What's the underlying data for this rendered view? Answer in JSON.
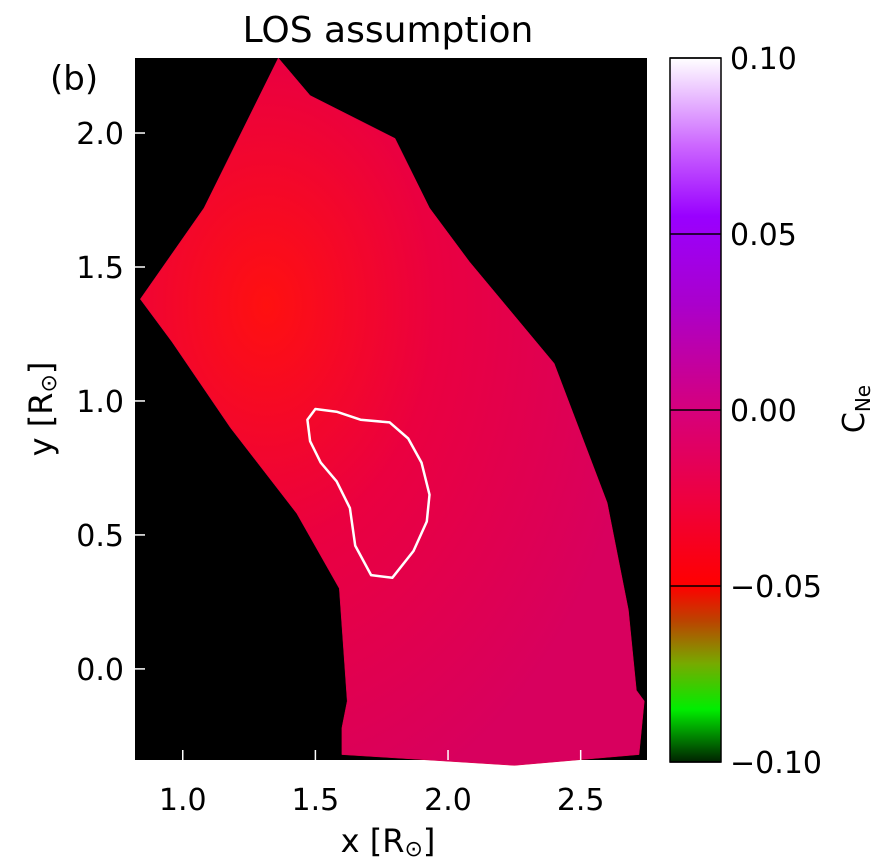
{
  "panel_label": "(b)",
  "chart_data": {
    "type": "heatmap",
    "title": "LOS assumption",
    "xlabel": "x [R",
    "ylabel": "y [R",
    "xlabel_suffix": "]",
    "ylabel_suffix": "]",
    "sun_symbol": "⊙",
    "xlim": [
      0.82,
      2.75
    ],
    "ylim": [
      -0.34,
      2.28
    ],
    "xticks": [
      {
        "value": 1.0,
        "label": "1.0"
      },
      {
        "value": 1.5,
        "label": "1.5"
      },
      {
        "value": 2.0,
        "label": "2.0"
      },
      {
        "value": 2.5,
        "label": "2.5"
      }
    ],
    "yticks": [
      {
        "value": 0.0,
        "label": "0.0"
      },
      {
        "value": 0.5,
        "label": "0.5"
      },
      {
        "value": 1.0,
        "label": "1.0"
      },
      {
        "value": 1.5,
        "label": "1.5"
      },
      {
        "value": 2.0,
        "label": "2.0"
      }
    ],
    "background_color": "#000000",
    "region_color": "#dc0048",
    "region_outline": [
      [
        0.84,
        1.38
      ],
      [
        1.08,
        1.72
      ],
      [
        1.36,
        2.28
      ],
      [
        1.48,
        2.14
      ],
      [
        1.8,
        1.98
      ],
      [
        1.93,
        1.72
      ],
      [
        2.08,
        1.52
      ],
      [
        2.4,
        1.14
      ],
      [
        2.6,
        0.62
      ],
      [
        2.68,
        0.22
      ],
      [
        2.71,
        -0.08
      ],
      [
        2.74,
        -0.12
      ],
      [
        2.72,
        -0.32
      ],
      [
        2.25,
        -0.36
      ],
      [
        1.6,
        -0.32
      ],
      [
        1.6,
        -0.22
      ],
      [
        1.62,
        -0.12
      ],
      [
        1.59,
        0.3
      ],
      [
        1.43,
        0.58
      ],
      [
        1.18,
        0.9
      ],
      [
        0.96,
        1.22
      ]
    ],
    "contour": {
      "color": "#ffffff",
      "points": [
        [
          1.5,
          0.97
        ],
        [
          1.58,
          0.96
        ],
        [
          1.67,
          0.93
        ],
        [
          1.78,
          0.92
        ],
        [
          1.85,
          0.86
        ],
        [
          1.9,
          0.77
        ],
        [
          1.93,
          0.65
        ],
        [
          1.92,
          0.55
        ],
        [
          1.87,
          0.44
        ],
        [
          1.79,
          0.34
        ],
        [
          1.71,
          0.35
        ],
        [
          1.65,
          0.46
        ],
        [
          1.63,
          0.6
        ],
        [
          1.58,
          0.7
        ],
        [
          1.52,
          0.77
        ],
        [
          1.48,
          0.85
        ],
        [
          1.47,
          0.93
        ]
      ]
    },
    "colorbar": {
      "label": "C",
      "label_sub": "Ne",
      "min": -0.1,
      "max": 0.1,
      "ticks": [
        {
          "value": 0.1,
          "label": "0.10"
        },
        {
          "value": 0.05,
          "label": "0.05"
        },
        {
          "value": 0.0,
          "label": "0.00"
        },
        {
          "value": -0.05,
          "label": "−0.05"
        },
        {
          "value": -0.1,
          "label": "−0.10"
        }
      ],
      "stops": [
        {
          "value": 0.1,
          "color": "#ffffff"
        },
        {
          "value": 0.075,
          "color": "#cc66ff"
        },
        {
          "value": 0.055,
          "color": "#9900ff"
        },
        {
          "value": 0.03,
          "color": "#aa00cc"
        },
        {
          "value": 0.0,
          "color": "#d6007c"
        },
        {
          "value": -0.025,
          "color": "#ee0040"
        },
        {
          "value": -0.05,
          "color": "#ff0000"
        },
        {
          "value": -0.06,
          "color": "#bb4400"
        },
        {
          "value": -0.072,
          "color": "#77aa00"
        },
        {
          "value": -0.085,
          "color": "#00ee00"
        },
        {
          "value": -0.1,
          "color": "#002200"
        }
      ]
    }
  }
}
